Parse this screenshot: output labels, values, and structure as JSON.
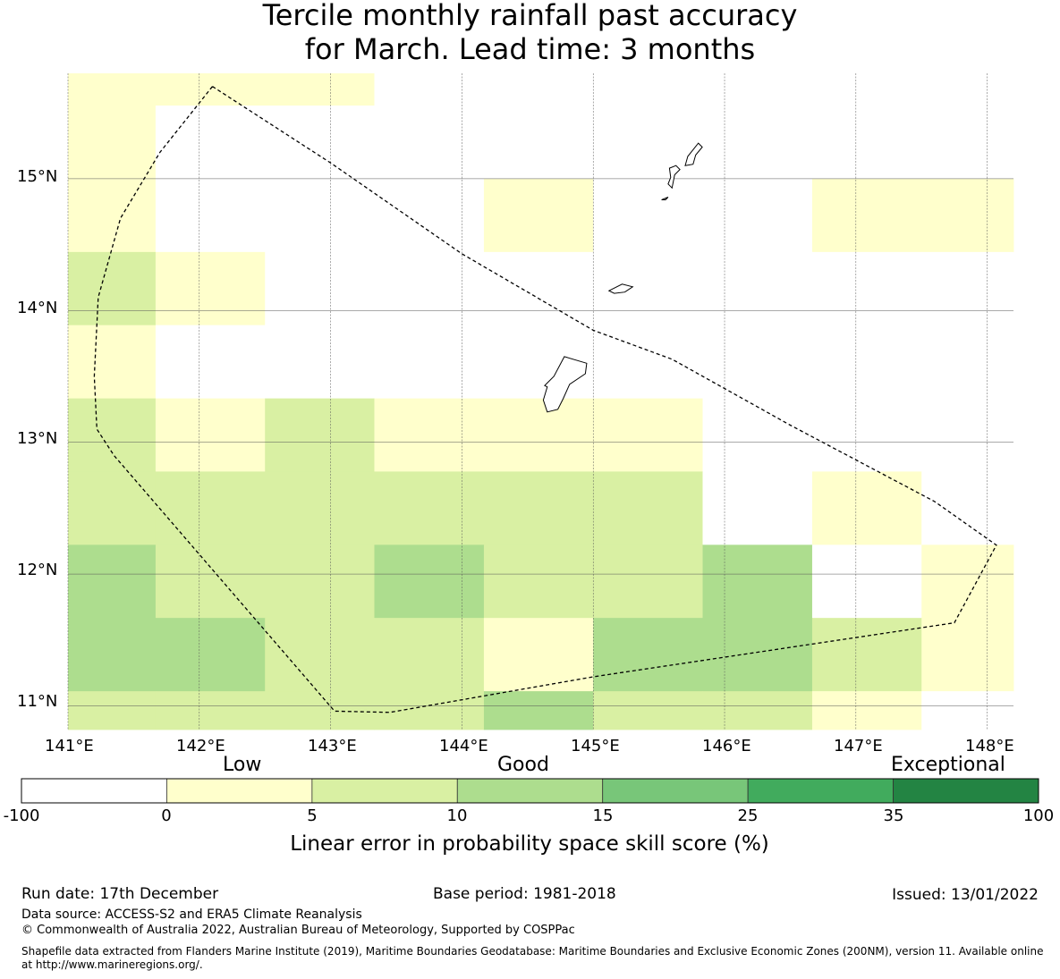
{
  "title": {
    "line1": "Tercile monthly rainfall past accuracy",
    "line2": "for March. Lead time: 3 months"
  },
  "map": {
    "lon_range": [
      141.0,
      148.2
    ],
    "lat_range": [
      10.82,
      15.8
    ],
    "x_ticks": [
      "141°E",
      "142°E",
      "143°E",
      "144°E",
      "145°E",
      "146°E",
      "147°E",
      "148°E"
    ],
    "y_ticks": [
      "15°N",
      "14°N",
      "13°N",
      "12°N",
      "11°N"
    ],
    "cell_colors": {
      "w": "#ffffff",
      "y": "#ffffcc",
      "l": "#d9f0a3",
      "m": "#addd8e"
    },
    "grid": {
      "lon_edges": [
        141.0,
        141.667,
        142.5,
        143.333,
        144.167,
        145.0,
        145.833,
        146.667,
        147.5,
        148.2
      ],
      "lat_edges": [
        15.8,
        15.555,
        15.0,
        14.444,
        13.889,
        13.333,
        12.778,
        12.222,
        11.667,
        11.111,
        10.82
      ],
      "rows": [
        [
          "y",
          "y",
          "y",
          "w",
          "w",
          "w",
          "w",
          "w",
          "w"
        ],
        [
          "y",
          "w",
          "w",
          "w",
          "w",
          "w",
          "w",
          "w",
          "w"
        ],
        [
          "y",
          "w",
          "w",
          "w",
          "y",
          "w",
          "w",
          "y",
          "y"
        ],
        [
          "l",
          "y",
          "w",
          "w",
          "w",
          "w",
          "w",
          "w",
          "w"
        ],
        [
          "y",
          "w",
          "w",
          "w",
          "w",
          "w",
          "w",
          "w",
          "w"
        ],
        [
          "l",
          "y",
          "l",
          "y",
          "y",
          "y",
          "w",
          "w",
          "w"
        ],
        [
          "l",
          "l",
          "l",
          "l",
          "l",
          "l",
          "w",
          "y",
          "w"
        ],
        [
          "m",
          "l",
          "l",
          "m",
          "l",
          "l",
          "m",
          "w",
          "y"
        ],
        [
          "m",
          "m",
          "l",
          "l",
          "y",
          "m",
          "m",
          "l",
          "y"
        ],
        [
          "l",
          "l",
          "l",
          "l",
          "m",
          "l",
          "l",
          "y",
          "w"
        ]
      ]
    },
    "eez_boundary": [
      [
        142.1,
        15.7
      ],
      [
        143.0,
        15.12
      ],
      [
        144.0,
        14.43
      ],
      [
        145.0,
        13.85
      ],
      [
        145.6,
        13.63
      ],
      [
        146.5,
        13.13
      ],
      [
        147.6,
        12.55
      ],
      [
        148.07,
        12.22
      ],
      [
        147.75,
        11.63
      ],
      [
        145.0,
        11.22
      ],
      [
        143.45,
        10.95
      ],
      [
        143.03,
        10.96
      ],
      [
        141.35,
        12.9
      ],
      [
        141.22,
        13.1
      ],
      [
        141.2,
        13.5
      ],
      [
        141.23,
        14.1
      ],
      [
        141.4,
        14.7
      ],
      [
        141.7,
        15.2
      ],
      [
        142.1,
        15.7
      ]
    ],
    "islands": [
      {
        "name": "Guam",
        "outline": [
          [
            144.78,
            13.65
          ],
          [
            144.95,
            13.6
          ],
          [
            144.94,
            13.52
          ],
          [
            144.82,
            13.44
          ],
          [
            144.77,
            13.33
          ],
          [
            144.73,
            13.25
          ],
          [
            144.65,
            13.23
          ],
          [
            144.62,
            13.32
          ],
          [
            144.65,
            13.42
          ],
          [
            144.63,
            13.43
          ],
          [
            144.7,
            13.5
          ],
          [
            144.78,
            13.65
          ]
        ]
      },
      {
        "name": "Rota",
        "outline": [
          [
            145.12,
            14.15
          ],
          [
            145.22,
            14.2
          ],
          [
            145.3,
            14.18
          ],
          [
            145.24,
            14.14
          ],
          [
            145.16,
            14.13
          ],
          [
            145.12,
            14.15
          ]
        ]
      },
      {
        "name": "Tinian",
        "outline": [
          [
            145.6,
            14.93
          ],
          [
            145.62,
            15.03
          ],
          [
            145.66,
            15.07
          ],
          [
            145.63,
            15.1
          ],
          [
            145.58,
            15.08
          ],
          [
            145.59,
            15.01
          ],
          [
            145.57,
            14.96
          ],
          [
            145.6,
            14.93
          ]
        ]
      },
      {
        "name": "Saipan",
        "outline": [
          [
            145.7,
            15.1
          ],
          [
            145.72,
            15.17
          ],
          [
            145.8,
            15.27
          ],
          [
            145.83,
            15.24
          ],
          [
            145.78,
            15.18
          ],
          [
            145.76,
            15.11
          ],
          [
            145.7,
            15.1
          ]
        ]
      },
      {
        "name": "Aguijan",
        "outline": [
          [
            145.52,
            14.84
          ],
          [
            145.57,
            14.86
          ],
          [
            145.55,
            14.84
          ],
          [
            145.52,
            14.84
          ]
        ]
      }
    ]
  },
  "colorbar": {
    "title": "Linear error in probability space skill score (%)",
    "categories": [
      "Low",
      "Good",
      "Exceptional"
    ],
    "ticks": [
      "-100",
      "0",
      "5",
      "10",
      "15",
      "25",
      "35",
      "100"
    ],
    "colors": [
      "#ffffff",
      "#ffffcc",
      "#d9f0a3",
      "#addd8e",
      "#78c679",
      "#41ab5d",
      "#238443"
    ]
  },
  "footer": {
    "run_date": "Run date: 17th December",
    "base_period": "Base period: 1981-2018",
    "issued": "Issued: 13/01/2022",
    "data_source": "Data source: ACCESS-S2 and ERA5 Climate Reanalysis",
    "copyright": "© Commonwealth of Australia 2022, Australian Bureau of Meteorology, Supported by COSPPac",
    "shapefile_1": "Shapefile data extracted from Flanders Marine Institute (2019), Maritime Boundaries Geodatabase: Maritime Boundaries and Exclusive Economic Zones (200NM), version 11. Available online",
    "shapefile_2": "at http://www.marineregions.org/."
  }
}
